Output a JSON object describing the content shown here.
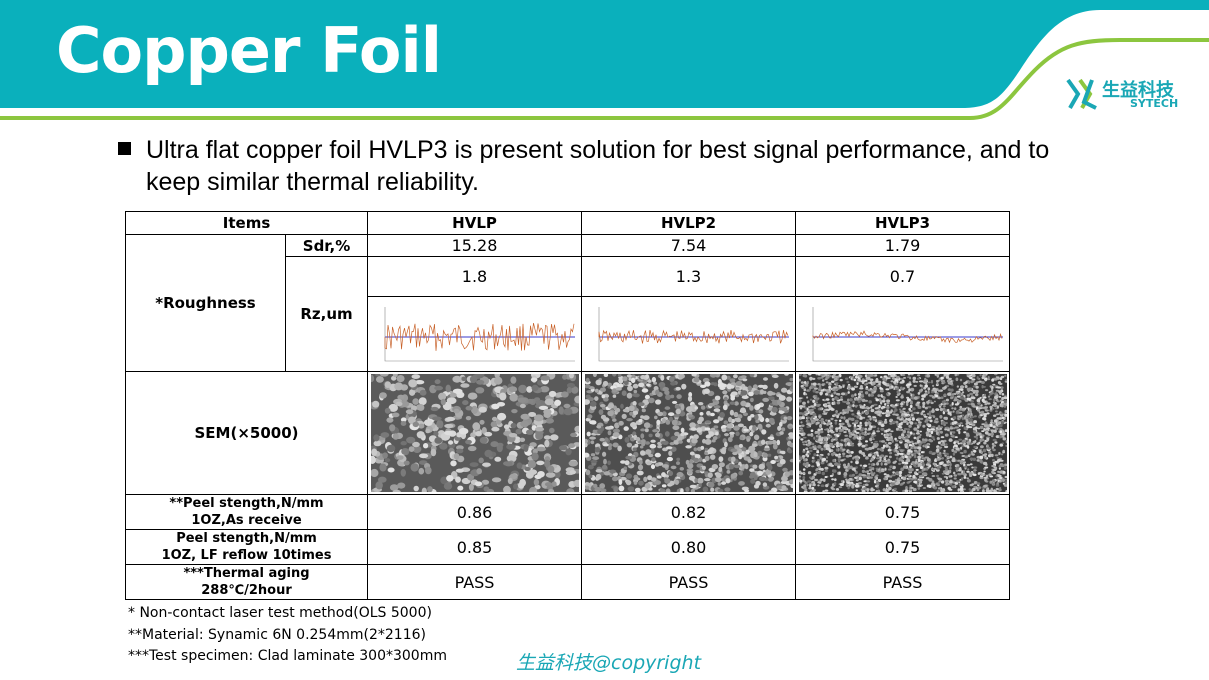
{
  "header": {
    "title": "Copper Foil",
    "logo_cn": "生益科技",
    "logo_en": "SYTECH",
    "band_color": "#0ab0bc",
    "accent_color": "#8cc63f"
  },
  "bullet": "Ultra flat copper foil HVLP3 is present solution for best signal performance, and to keep similar thermal reliability.",
  "table": {
    "header": [
      "Items",
      "HVLP",
      "HVLP2",
      "HVLP3"
    ],
    "roughness_label": "*Roughness",
    "sdr": {
      "label": "Sdr,%",
      "values": [
        "15.28",
        "7.54",
        "1.79"
      ]
    },
    "rz": {
      "label": "Rz,um",
      "values": [
        "1.8",
        "1.3",
        "0.7"
      ]
    },
    "sem_label": "SEM(×5000)",
    "peel_as_receive": {
      "label_line1": "**Peel stength,N/mm",
      "label_line2": "1OZ,As receive",
      "values": [
        "0.86",
        "0.82",
        "0.75"
      ]
    },
    "peel_reflow": {
      "label_line1": "Peel stength,N/mm",
      "label_line2": "1OZ, LF reflow 10times",
      "values": [
        "0.85",
        "0.80",
        "0.75"
      ]
    },
    "thermal": {
      "label_line1": "***Thermal aging",
      "label_line2": "288℃/2hour",
      "values": [
        "PASS",
        "PASS",
        "PASS"
      ]
    }
  },
  "notes": [
    "* Non-contact laser test method(OLS 5000)",
    "**Material: Synamic 6N 0.254mm(2*2116)",
    "***Test specimen: Clad laminate 300*300mm"
  ],
  "copyright": "生益科技@copyright"
}
